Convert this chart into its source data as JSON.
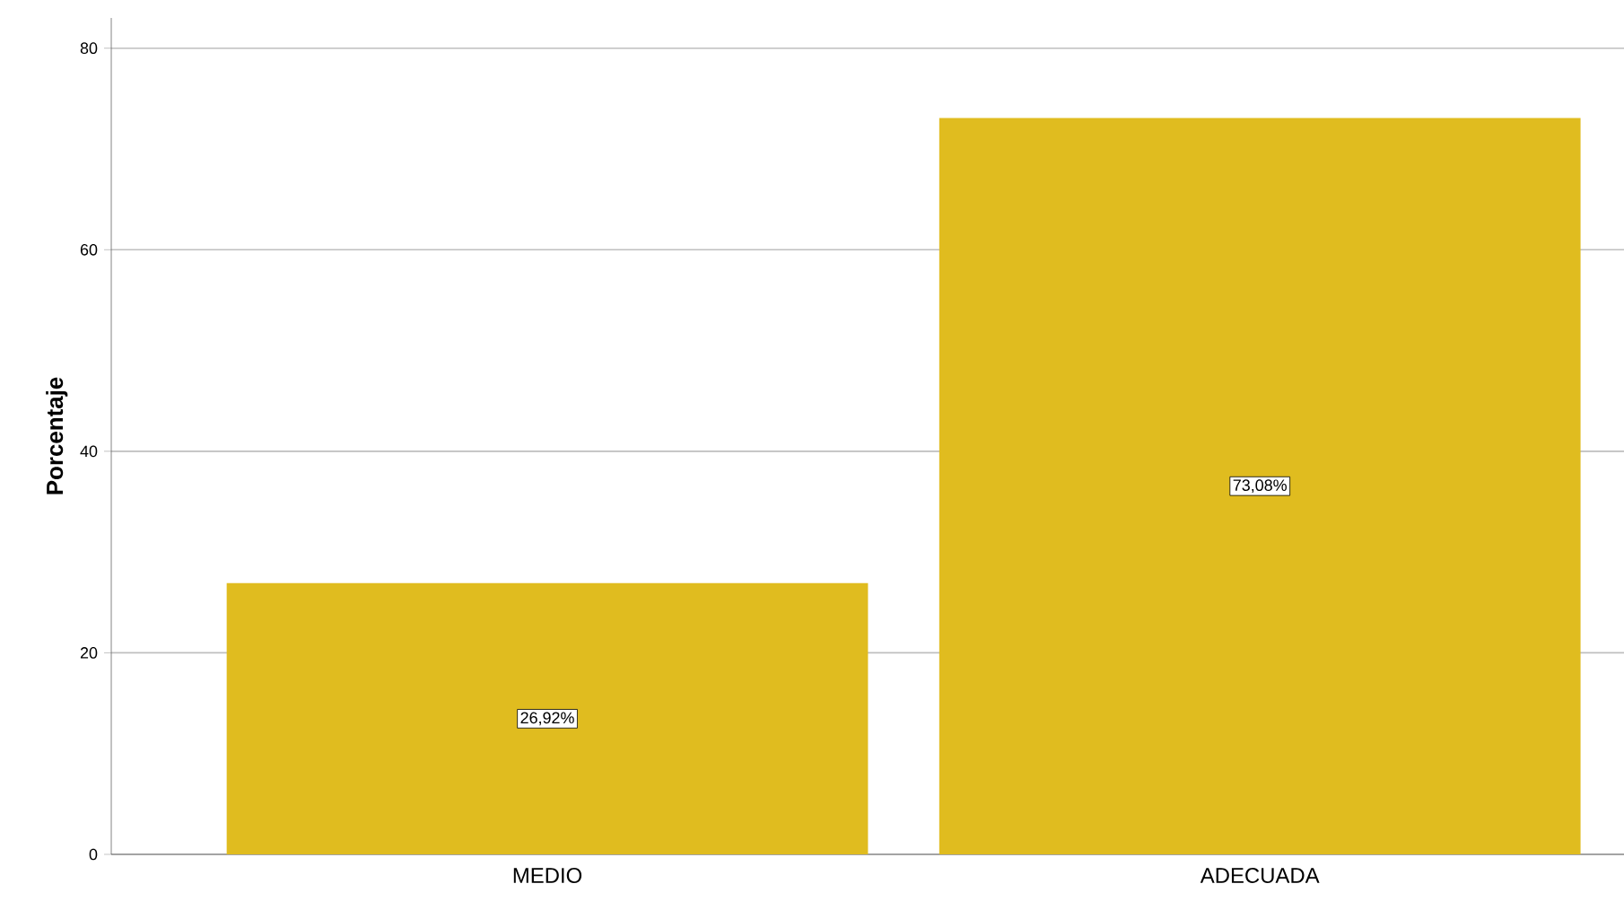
{
  "chart_data": {
    "type": "bar",
    "ylabel": "Porcentaje",
    "categories": [
      "MEDIO",
      "ADECUADA"
    ],
    "values": [
      26.92,
      73.08
    ],
    "value_labels": [
      "26,92%",
      "73,08%"
    ],
    "color": "#e0bc1f",
    "ylim": [
      0,
      83
    ],
    "yticks": [
      0,
      20,
      40,
      60,
      80
    ],
    "grid": "y"
  }
}
